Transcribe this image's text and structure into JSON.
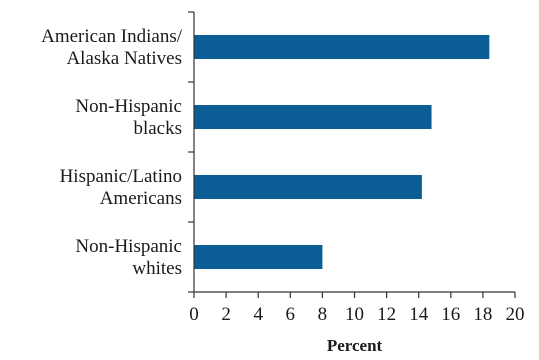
{
  "chart_data": {
    "type": "bar",
    "orientation": "horizontal",
    "categories": [
      [
        "American Indians/",
        "Alaska Natives"
      ],
      [
        "Non-Hispanic",
        "blacks"
      ],
      [
        "Hispanic/Latino",
        "Americans"
      ],
      [
        "Non-Hispanic",
        "whites"
      ]
    ],
    "values": [
      18.4,
      14.8,
      14.2,
      8.0
    ],
    "xlabel": "Percent",
    "ylabel": "",
    "xlim": [
      0,
      20
    ],
    "xticks": [
      "0",
      "2",
      "4",
      "6",
      "8",
      "10",
      "12",
      "14",
      "16",
      "18",
      "20"
    ],
    "grid": false,
    "bar_color": "#0b5d96"
  }
}
